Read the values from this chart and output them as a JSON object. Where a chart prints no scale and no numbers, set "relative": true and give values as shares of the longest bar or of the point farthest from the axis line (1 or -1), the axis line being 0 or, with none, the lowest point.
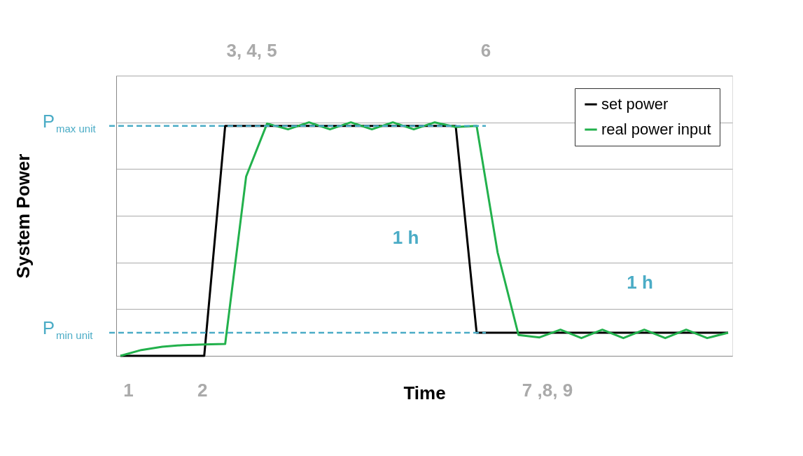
{
  "chart_data": {
    "type": "line",
    "relative": true,
    "xlabel": "Time",
    "ylabel": "System Power",
    "grid": "y",
    "legend": "top right",
    "tick_labels": false,
    "categories": [
      null,
      null,
      null,
      null,
      null,
      null,
      null,
      null,
      null,
      null,
      null,
      null,
      null,
      null,
      null,
      null,
      null,
      null,
      null,
      null,
      null,
      null,
      null,
      null,
      null,
      null,
      null,
      null,
      null,
      null
    ],
    "series": [
      {
        "name": "set power",
        "color": "#000000",
        "values": [
          0,
          0,
          0,
          0,
          0,
          0.985,
          0.985,
          0.985,
          0.985,
          0.985,
          0.985,
          0.985,
          0.985,
          0.985,
          0.985,
          0.985,
          0.985,
          0.099,
          0.099,
          0.099,
          0.099,
          0.099,
          0.099,
          0.099,
          0.099,
          0.099,
          0.099,
          0.099,
          0.099,
          0.099
        ]
      },
      {
        "name": "real power input",
        "color": "#22b14c",
        "values": [
          0,
          0.025,
          0.039,
          0.046,
          0.049,
          0.051,
          0.768,
          0.995,
          0.97,
          1,
          0.97,
          1,
          0.97,
          1,
          0.97,
          1,
          0.98,
          0.985,
          0.443,
          0.089,
          0.079,
          0.112,
          0.076,
          0.112,
          0.076,
          0.112,
          0.076,
          0.112,
          0.076,
          0.099
        ]
      }
    ],
    "ref_lines": [
      {
        "axis": "y",
        "value": 0.985,
        "label": "P$_{max unit}$",
        "color": "#4bacc6",
        "line_style": "dashed"
      },
      {
        "axis": "y",
        "value": 0.099,
        "label": "P$_{min unit}$",
        "color": "#4bacc6",
        "line_style": "dashed"
      }
    ],
    "annotations": [
      "1 h",
      "1 h",
      "1",
      "2",
      "3, 4, 5",
      "6",
      "7 ,8, 9"
    ]
  }
}
